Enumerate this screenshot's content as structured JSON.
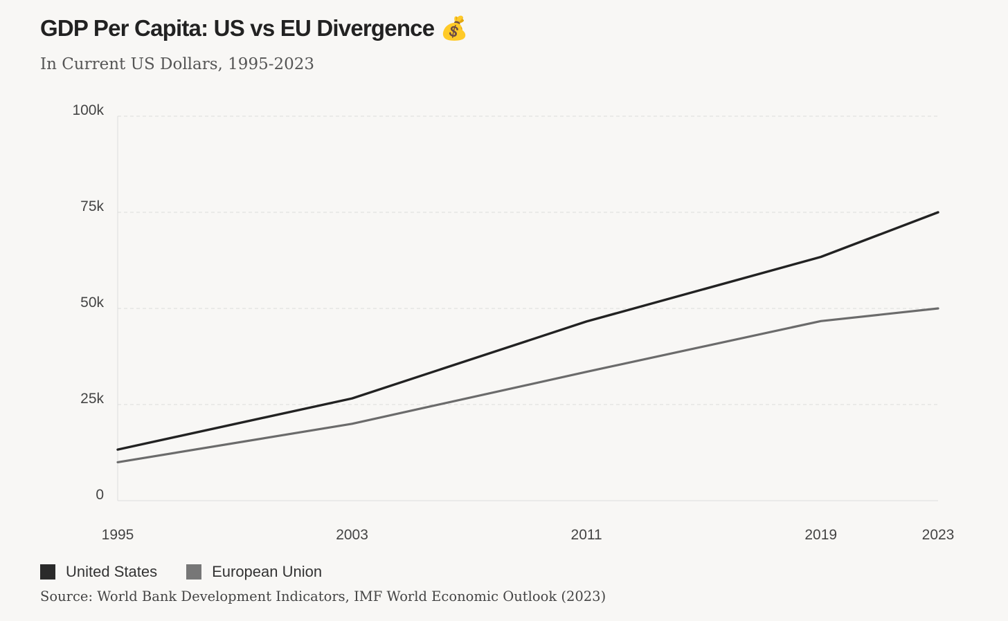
{
  "header": {
    "title": "GDP Per Capita: US vs EU Divergence 💰",
    "subtitle": "In Current US Dollars, 1995-2023"
  },
  "legend": {
    "items": [
      {
        "label": "United States",
        "color": "#2a2a2a"
      },
      {
        "label": "European Union",
        "color": "#777777"
      }
    ]
  },
  "footer": {
    "source": "Source: World Bank Development Indicators, IMF World Economic Outlook (2023)"
  },
  "chart_data": {
    "type": "line",
    "x": [
      1995,
      2003,
      2011,
      2019,
      2023
    ],
    "x_tick_labels": [
      "1995",
      "2003",
      "2011",
      "2019",
      "2023"
    ],
    "y_tick_values": [
      0,
      25000,
      50000,
      75000,
      100000
    ],
    "y_tick_labels": [
      "0",
      "25k",
      "50k",
      "75k",
      "100k"
    ],
    "ylim": [
      0,
      100000
    ],
    "grid": true,
    "legend_position": "bottom-left",
    "series": [
      {
        "name": "United States",
        "color": "#222222",
        "values": [
          13300,
          26600,
          46600,
          63400,
          75000
        ]
      },
      {
        "name": "European Union",
        "color": "#6b6b6b",
        "values": [
          10000,
          20000,
          33500,
          46700,
          50000
        ]
      }
    ]
  }
}
